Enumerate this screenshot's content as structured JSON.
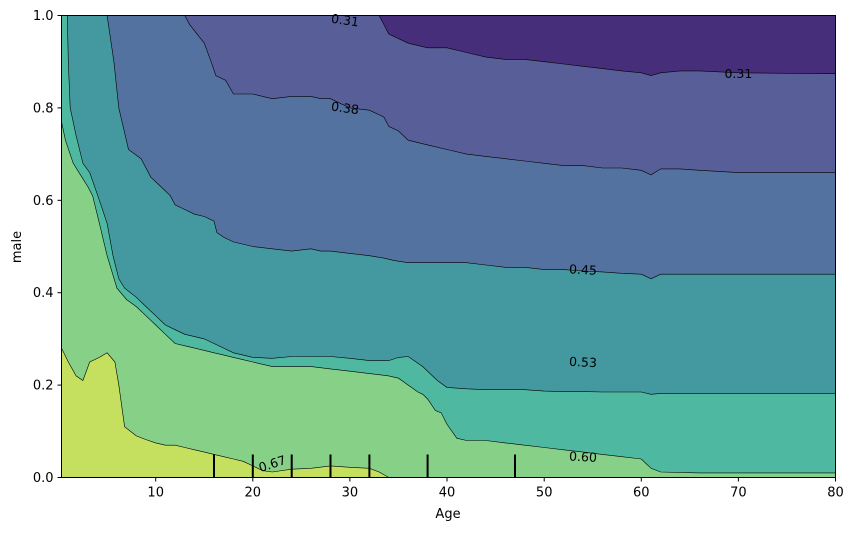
{
  "chart_data": {
    "type": "contour",
    "xlabel": "Age",
    "ylabel": "male",
    "xlim": [
      0.3,
      80
    ],
    "ylim": [
      0,
      1
    ],
    "x_ticks": [
      10,
      20,
      30,
      40,
      50,
      60,
      70,
      80
    ],
    "y_ticks": [
      0.0,
      0.2,
      0.4,
      0.6,
      0.8,
      1.0
    ],
    "x_tick_labels": [
      "10",
      "20",
      "30",
      "40",
      "50",
      "60",
      "70",
      "80"
    ],
    "y_tick_labels": [
      "0.0",
      "0.2",
      "0.4",
      "0.6",
      "0.8",
      "1.0"
    ],
    "contour_levels": [
      0.31,
      0.38,
      0.45,
      0.53,
      0.6,
      0.67
    ],
    "level_colors": [
      "#472e7a",
      "#585e98",
      "#5372a0",
      "#43999f",
      "#4eb8a0",
      "#86d088",
      "#c4e05e",
      "#fde725"
    ],
    "contour_lines": [
      {
        "level": 0.31,
        "points": [
          [
            33,
            1.0
          ],
          [
            34,
            0.96
          ],
          [
            36,
            0.94
          ],
          [
            38,
            0.93
          ],
          [
            40,
            0.93
          ],
          [
            42,
            0.92
          ],
          [
            44,
            0.91
          ],
          [
            46,
            0.905
          ],
          [
            48,
            0.905
          ],
          [
            50,
            0.9
          ],
          [
            52,
            0.895
          ],
          [
            54,
            0.89
          ],
          [
            56,
            0.885
          ],
          [
            58,
            0.88
          ],
          [
            60,
            0.876
          ],
          [
            61,
            0.87
          ],
          [
            62,
            0.876
          ],
          [
            64,
            0.88
          ],
          [
            66,
            0.88
          ],
          [
            70,
            0.876
          ],
          [
            75,
            0.875
          ],
          [
            80,
            0.874
          ]
        ]
      },
      {
        "level": 0.38,
        "points": [
          [
            13,
            1.0
          ],
          [
            13.5,
            0.98
          ],
          [
            15,
            0.94
          ],
          [
            15.7,
            0.9
          ],
          [
            16.2,
            0.87
          ],
          [
            17.2,
            0.86
          ],
          [
            18,
            0.83
          ],
          [
            20,
            0.83
          ],
          [
            22,
            0.82
          ],
          [
            24,
            0.825
          ],
          [
            26,
            0.825
          ],
          [
            27,
            0.82
          ],
          [
            28,
            0.82
          ],
          [
            29,
            0.81
          ],
          [
            30,
            0.8
          ],
          [
            32,
            0.795
          ],
          [
            33.5,
            0.78
          ],
          [
            34,
            0.76
          ],
          [
            35,
            0.75
          ],
          [
            36,
            0.73
          ],
          [
            38,
            0.72
          ],
          [
            40,
            0.71
          ],
          [
            42,
            0.7
          ],
          [
            44,
            0.695
          ],
          [
            46,
            0.69
          ],
          [
            48,
            0.685
          ],
          [
            50,
            0.68
          ],
          [
            52,
            0.675
          ],
          [
            54,
            0.675
          ],
          [
            56,
            0.67
          ],
          [
            58,
            0.67
          ],
          [
            60,
            0.665
          ],
          [
            61,
            0.655
          ],
          [
            62,
            0.668
          ],
          [
            64,
            0.668
          ],
          [
            66,
            0.665
          ],
          [
            70,
            0.66
          ],
          [
            75,
            0.66
          ],
          [
            80,
            0.66
          ]
        ]
      },
      {
        "level": 0.45,
        "points": [
          [
            5,
            1.0
          ],
          [
            5.7,
            0.9
          ],
          [
            6.2,
            0.8
          ],
          [
            7.2,
            0.71
          ],
          [
            8.5,
            0.69
          ],
          [
            9,
            0.67
          ],
          [
            9.5,
            0.65
          ],
          [
            10.5,
            0.63
          ],
          [
            11.5,
            0.61
          ],
          [
            12,
            0.59
          ],
          [
            13,
            0.58
          ],
          [
            14,
            0.57
          ],
          [
            15,
            0.565
          ],
          [
            16,
            0.555
          ],
          [
            16.3,
            0.53
          ],
          [
            17,
            0.52
          ],
          [
            18,
            0.51
          ],
          [
            20,
            0.5
          ],
          [
            22,
            0.495
          ],
          [
            24,
            0.49
          ],
          [
            26,
            0.495
          ],
          [
            27,
            0.49
          ],
          [
            28,
            0.49
          ],
          [
            30,
            0.485
          ],
          [
            32,
            0.48
          ],
          [
            33.5,
            0.475
          ],
          [
            34.5,
            0.47
          ],
          [
            36,
            0.465
          ],
          [
            38,
            0.465
          ],
          [
            40,
            0.465
          ],
          [
            42,
            0.465
          ],
          [
            44,
            0.46
          ],
          [
            46,
            0.455
          ],
          [
            48,
            0.455
          ],
          [
            50,
            0.45
          ],
          [
            52,
            0.45
          ],
          [
            54,
            0.447
          ],
          [
            56,
            0.445
          ],
          [
            58,
            0.442
          ],
          [
            60,
            0.44
          ],
          [
            61,
            0.43
          ],
          [
            62,
            0.44
          ],
          [
            66,
            0.44
          ],
          [
            70,
            0.44
          ],
          [
            75,
            0.44
          ],
          [
            80,
            0.44
          ]
        ]
      },
      {
        "level": 0.53,
        "points": [
          [
            0.9,
            1.0
          ],
          [
            1.0,
            0.9
          ],
          [
            1.2,
            0.8
          ],
          [
            1.8,
            0.74
          ],
          [
            2.5,
            0.68
          ],
          [
            3.2,
            0.66
          ],
          [
            4.2,
            0.6
          ],
          [
            5,
            0.55
          ],
          [
            5.6,
            0.48
          ],
          [
            6.2,
            0.43
          ],
          [
            6.8,
            0.41
          ],
          [
            8,
            0.39
          ],
          [
            9,
            0.37
          ],
          [
            10,
            0.35
          ],
          [
            11,
            0.33
          ],
          [
            12,
            0.32
          ],
          [
            13,
            0.31
          ],
          [
            14,
            0.305
          ],
          [
            15,
            0.3
          ],
          [
            16,
            0.29
          ],
          [
            17,
            0.28
          ],
          [
            18,
            0.27
          ],
          [
            19,
            0.265
          ],
          [
            20,
            0.26
          ],
          [
            22,
            0.258
          ],
          [
            24,
            0.262
          ],
          [
            26,
            0.262
          ],
          [
            28,
            0.262
          ],
          [
            30,
            0.258
          ],
          [
            32,
            0.253
          ],
          [
            34,
            0.253
          ],
          [
            35,
            0.26
          ],
          [
            36,
            0.262
          ],
          [
            37.5,
            0.24
          ],
          [
            39,
            0.21
          ],
          [
            40,
            0.195
          ],
          [
            42,
            0.192
          ],
          [
            44,
            0.19
          ],
          [
            46,
            0.19
          ],
          [
            48,
            0.19
          ],
          [
            50,
            0.187
          ],
          [
            52,
            0.186
          ],
          [
            54,
            0.186
          ],
          [
            56,
            0.185
          ],
          [
            58,
            0.185
          ],
          [
            60,
            0.185
          ],
          [
            61,
            0.18
          ],
          [
            62,
            0.182
          ],
          [
            66,
            0.182
          ],
          [
            70,
            0.182
          ],
          [
            75,
            0.182
          ],
          [
            80,
            0.182
          ]
        ]
      },
      {
        "level": 0.6,
        "points": [
          [
            0.3,
            0.77
          ],
          [
            0.7,
            0.73
          ],
          [
            1.5,
            0.68
          ],
          [
            2.4,
            0.65
          ],
          [
            3,
            0.63
          ],
          [
            3.5,
            0.61
          ],
          [
            4.2,
            0.55
          ],
          [
            5,
            0.48
          ],
          [
            6,
            0.41
          ],
          [
            7,
            0.385
          ],
          [
            8,
            0.37
          ],
          [
            9,
            0.35
          ],
          [
            10,
            0.33
          ],
          [
            11,
            0.31
          ],
          [
            12,
            0.29
          ],
          [
            13,
            0.285
          ],
          [
            14,
            0.28
          ],
          [
            15,
            0.275
          ],
          [
            16,
            0.27
          ],
          [
            17,
            0.265
          ],
          [
            18,
            0.26
          ],
          [
            19,
            0.255
          ],
          [
            20,
            0.25
          ],
          [
            22,
            0.24
          ],
          [
            24,
            0.24
          ],
          [
            26,
            0.24
          ],
          [
            28,
            0.235
          ],
          [
            30,
            0.23
          ],
          [
            32,
            0.225
          ],
          [
            34,
            0.22
          ],
          [
            35,
            0.215
          ],
          [
            36,
            0.2
          ],
          [
            37,
            0.185
          ],
          [
            37.5,
            0.18
          ],
          [
            38,
            0.17
          ],
          [
            38.8,
            0.145
          ],
          [
            39.4,
            0.14
          ],
          [
            40,
            0.115
          ],
          [
            41,
            0.085
          ],
          [
            42,
            0.08
          ],
          [
            44,
            0.08
          ],
          [
            46,
            0.075
          ],
          [
            48,
            0.07
          ],
          [
            50,
            0.065
          ],
          [
            52,
            0.06
          ],
          [
            54,
            0.055
          ],
          [
            56,
            0.05
          ],
          [
            58,
            0.045
          ],
          [
            60,
            0.04
          ],
          [
            60.5,
            0.03
          ],
          [
            61,
            0.02
          ],
          [
            62,
            0.012
          ],
          [
            66,
            0.01
          ],
          [
            70,
            0.01
          ],
          [
            75,
            0.01
          ],
          [
            80,
            0.01
          ]
        ]
      },
      {
        "level": 0.67,
        "points": [
          [
            0.3,
            0.28
          ],
          [
            1,
            0.25
          ],
          [
            1.8,
            0.22
          ],
          [
            2.5,
            0.21
          ],
          [
            3.2,
            0.25
          ],
          [
            4.2,
            0.26
          ],
          [
            5,
            0.27
          ],
          [
            5.8,
            0.25
          ],
          [
            6.2,
            0.2
          ],
          [
            6.8,
            0.11
          ],
          [
            8,
            0.09
          ],
          [
            9,
            0.082
          ],
          [
            10,
            0.075
          ],
          [
            11,
            0.07
          ],
          [
            12,
            0.07
          ],
          [
            13,
            0.065
          ],
          [
            14,
            0.06
          ],
          [
            15,
            0.055
          ],
          [
            16,
            0.05
          ],
          [
            17,
            0.045
          ],
          [
            18,
            0.04
          ],
          [
            19,
            0.035
          ],
          [
            20,
            0.025
          ],
          [
            21,
            0.015
          ],
          [
            22,
            0.012
          ],
          [
            24,
            0.018
          ],
          [
            26,
            0.02
          ],
          [
            28,
            0.025
          ],
          [
            30,
            0.022
          ],
          [
            32,
            0.02
          ],
          [
            33,
            0.012
          ],
          [
            34,
            0.0
          ]
        ]
      }
    ],
    "contour_labels": [
      {
        "text": "0.31",
        "x": 29.5,
        "y": 0.99,
        "angle": 8
      },
      {
        "text": "0.31",
        "x": 70,
        "y": 0.874,
        "angle": 0
      },
      {
        "text": "0.38",
        "x": 29.5,
        "y": 0.8,
        "angle": 8
      },
      {
        "text": "0.45",
        "x": 54,
        "y": 0.45,
        "angle": 3
      },
      {
        "text": "0.53",
        "x": 54,
        "y": 0.25,
        "angle": 3
      },
      {
        "text": "0.60",
        "x": 54,
        "y": 0.045,
        "angle": 3
      },
      {
        "text": "0.67",
        "x": 22,
        "y": 0.03,
        "angle": -18
      }
    ],
    "rug_x": [
      16,
      20,
      24,
      28,
      32,
      38,
      47
    ]
  }
}
